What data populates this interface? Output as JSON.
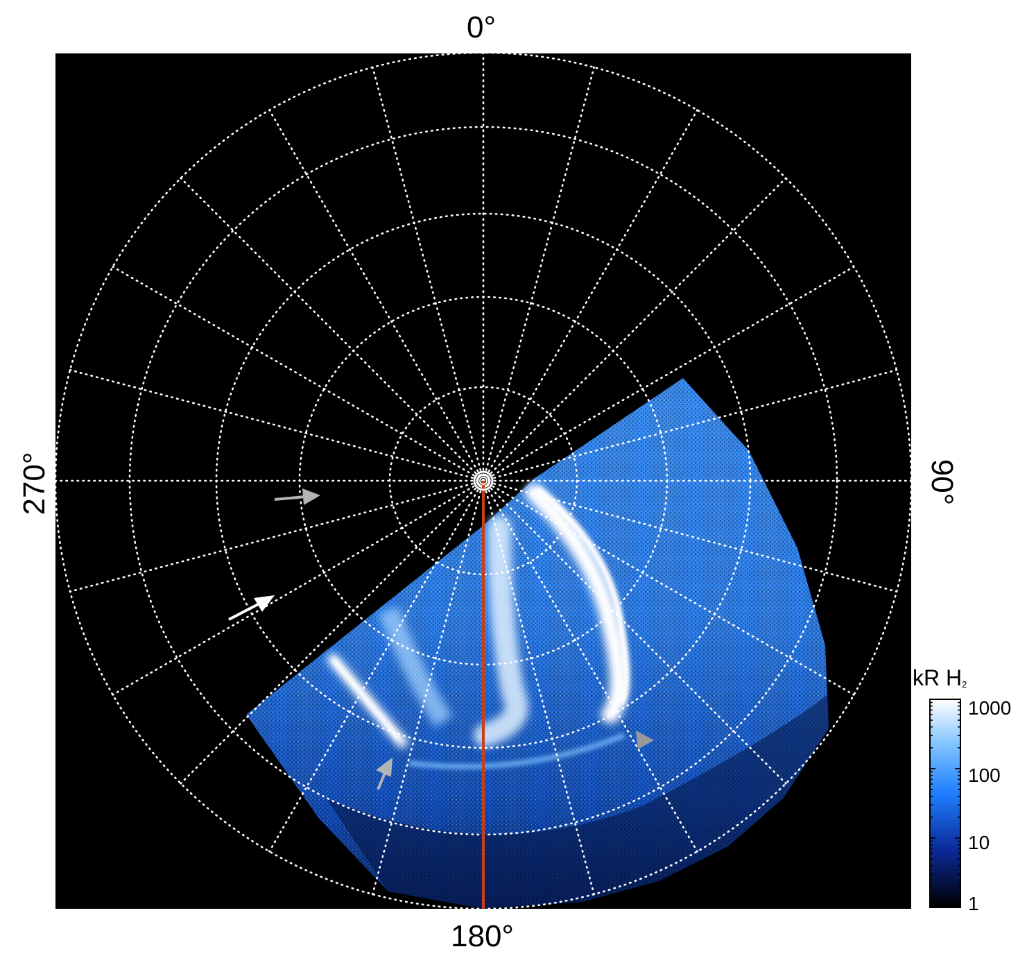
{
  "labels": {
    "top": "0°",
    "right": "90°",
    "bottom": "180°",
    "left": "270°"
  },
  "colorbar": {
    "title": "kR H",
    "title_subscript": "2",
    "ticks": [
      "1000",
      "100",
      "10",
      "1"
    ],
    "tick_values": [
      1000,
      100,
      10,
      1
    ],
    "scale": "log",
    "colors": [
      "#ffffff",
      "#7fc2ff",
      "#1f7fff",
      "#0a2a9a",
      "#000000"
    ]
  },
  "colors": {
    "background": "#000000",
    "grid": "#ffffff",
    "meridian_line": "#c8401a",
    "arrow_white": "#ffffff",
    "arrow_gray": "#b4b4b4"
  }
}
